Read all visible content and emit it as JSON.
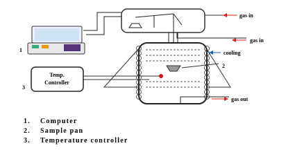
{
  "labels": {
    "gas_in_top": "gas in",
    "gas_in_mid": "gas in",
    "cooling": "cooling",
    "gas_out": "gas out",
    "marker_1": "1",
    "marker_2": "2",
    "marker_3": "3",
    "controller": [
      "Temp.",
      "Controller"
    ]
  },
  "legend": [
    {
      "number": "1.",
      "text": "Computer"
    },
    {
      "number": "2.",
      "text": "Sample pan"
    },
    {
      "number": "3.",
      "text": "Temperature controller"
    }
  ]
}
